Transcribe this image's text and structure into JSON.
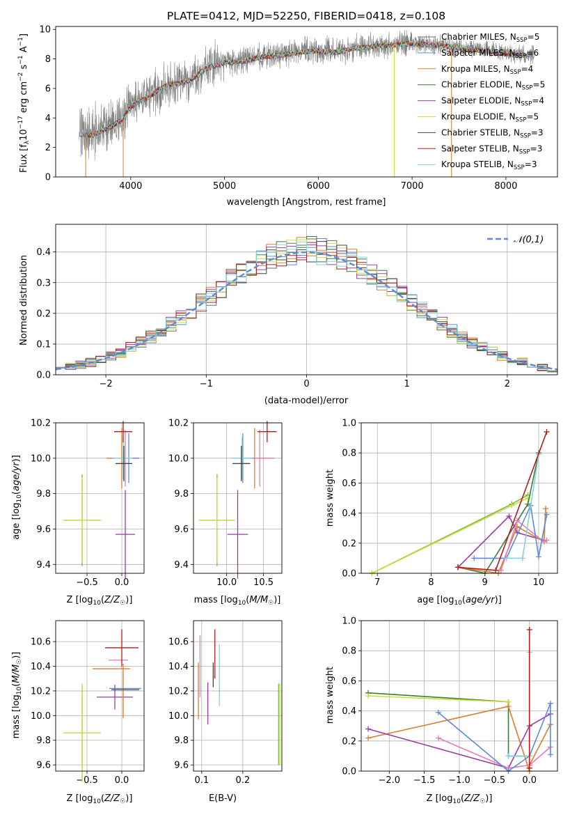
{
  "figure_title": "PLATE=0412, MJD=52250, FIBERID=0418, z=0.108",
  "colors": {
    "spectrum": "#808080",
    "models": [
      "#6a6a6a",
      "#5b8bd6",
      "#e07b28",
      "#3e7a3e",
      "#9a3aa8",
      "#c8de3c",
      "#404040",
      "#b81818",
      "#7fd4d8"
    ],
    "normal_curve": "#5b8bd6",
    "grid": "#b0b0b0",
    "param_markers": [
      "#e07b28",
      "#7bb93a",
      "#3e7a3e",
      "#9a3aa8",
      "#e878b8",
      "#b81818",
      "#404040",
      "#7fd4d8",
      "#5b8bd6",
      "#c8de3c"
    ]
  },
  "chart_data": [
    {
      "id": "spectrum",
      "type": "line",
      "xlabel": "wavelength [Angstrom, rest frame]",
      "ylabel": "Flux [f_λ 10^-17 erg cm^-2 s^-1 A^-1]",
      "xlim": [
        3200,
        8550
      ],
      "ylim": [
        0,
        10.2
      ],
      "xticks": [
        4000,
        5000,
        6000,
        7000,
        8000
      ],
      "yticks": [
        0,
        2,
        4,
        6,
        8,
        10
      ],
      "grid": false,
      "legend_placement": "right",
      "legend": [
        "Chabrier MILES, N_SSP=5",
        "Salpeter MILES, N_SSP=6",
        "Kroupa MILES, N_SSP=4",
        "Chabrier ELODIE, N_SSP=5",
        "Salpeter ELODIE, N_SSP=4",
        "Kroupa ELODIE, N_SSP=5",
        "Chabrier STELIB, N_SSP=3",
        "Salpeter STELIB, N_SSP=3",
        "Kroupa STELIB, N_SSP=3"
      ],
      "continuum": {
        "x": [
          3450,
          3600,
          3700,
          3800,
          3900,
          4000,
          4100,
          4200,
          4300,
          4400,
          4500,
          4600,
          4700,
          4800,
          4900,
          5000,
          5200,
          5400,
          5600,
          5800,
          6000,
          6200,
          6400,
          6600,
          6800,
          7000,
          7200,
          7400,
          7600,
          7800,
          8000,
          8200,
          8300
        ],
        "y": [
          2.9,
          2.9,
          3.2,
          3.5,
          3.9,
          4.8,
          5.2,
          5.5,
          6.0,
          6.3,
          6.4,
          6.5,
          6.9,
          7.4,
          7.6,
          7.8,
          7.9,
          8.2,
          8.3,
          8.5,
          8.6,
          8.5,
          8.8,
          8.9,
          9.0,
          9.1,
          9.0,
          8.9,
          8.7,
          8.6,
          8.4,
          8.3,
          8.2
        ]
      }
    },
    {
      "id": "residual_histogram",
      "type": "line",
      "xlabel": "(data-model)/error",
      "ylabel": "Normed distribution",
      "xlim": [
        -2.5,
        2.5
      ],
      "ylim": [
        0,
        0.49
      ],
      "xticks": [
        -2,
        -1,
        0,
        1,
        2
      ],
      "yticks": [
        0.0,
        0.1,
        0.2,
        0.3,
        0.4
      ],
      "grid": true,
      "legend_placement": "top-right",
      "legend": [
        "𝒩(0,1)"
      ],
      "bins": 50
    },
    {
      "id": "age_vs_Z",
      "type": "scatter",
      "xlabel": "Z [log10(Z/Z☉)]",
      "ylabel": "age  [log10(age/yr)]",
      "xlim": [
        -0.95,
        0.32
      ],
      "ylim": [
        9.35,
        10.2
      ],
      "xticks": [
        -0.5,
        0.0
      ],
      "yticks": [
        9.4,
        9.6,
        9.8,
        10.0,
        10.2
      ],
      "grid": true,
      "points": [
        {
          "x": -0.57,
          "y": 9.65,
          "xerr": 0.27,
          "yerr": 0.26,
          "c": 1
        },
        {
          "x": -0.57,
          "y": 9.65,
          "xerr": 0.27,
          "yerr": 0.24,
          "c": 9
        },
        {
          "x": 0.05,
          "y": 9.57,
          "xerr": 0.14,
          "yerr": 0.25,
          "c": 3
        },
        {
          "x": 0.0,
          "y": 10.0,
          "xerr": 0.22,
          "yerr": 0.17,
          "c": 0
        },
        {
          "x": 0.05,
          "y": 10.0,
          "xerr": 0.2,
          "yerr": 0.16,
          "c": 4
        },
        {
          "x": 0.1,
          "y": 10.0,
          "xerr": 0.15,
          "yerr": 0.14,
          "c": 8
        },
        {
          "x": 0.02,
          "y": 10.0,
          "xerr": 0.14,
          "yerr": 0.12,
          "c": 7
        },
        {
          "x": 0.03,
          "y": 9.97,
          "xerr": 0.12,
          "yerr": 0.1,
          "c": 6
        },
        {
          "x": 0.02,
          "y": 10.15,
          "xerr": 0.13,
          "yerr": 0.06,
          "c": 5
        }
      ]
    },
    {
      "id": "age_vs_mass",
      "type": "scatter",
      "xlabel": "mass [log10(M/M☉)]",
      "ylabel": "",
      "xlim": [
        9.55,
        10.75
      ],
      "ylim": [
        9.35,
        10.2
      ],
      "xticks": [
        10.0,
        10.5
      ],
      "yticks": [
        9.4,
        9.6,
        9.8,
        10.0,
        10.2
      ],
      "grid": true,
      "points": [
        {
          "x": 9.87,
          "y": 9.65,
          "xerr": 0.22,
          "yerr": 0.26,
          "c": 1
        },
        {
          "x": 9.87,
          "y": 9.65,
          "xerr": 0.25,
          "yerr": 0.24,
          "c": 9
        },
        {
          "x": 10.15,
          "y": 9.57,
          "xerr": 0.14,
          "yerr": 0.25,
          "c": 3
        },
        {
          "x": 10.38,
          "y": 10.0,
          "xerr": 0.22,
          "yerr": 0.17,
          "c": 0
        },
        {
          "x": 10.45,
          "y": 10.0,
          "xerr": 0.2,
          "yerr": 0.16,
          "c": 4
        },
        {
          "x": 10.22,
          "y": 10.0,
          "xerr": 0.15,
          "yerr": 0.14,
          "c": 8
        },
        {
          "x": 10.21,
          "y": 10.0,
          "xerr": 0.14,
          "yerr": 0.12,
          "c": 7
        },
        {
          "x": 10.2,
          "y": 9.97,
          "xerr": 0.12,
          "yerr": 0.1,
          "c": 6
        },
        {
          "x": 10.55,
          "y": 10.15,
          "xerr": 0.13,
          "yerr": 0.06,
          "c": 5
        }
      ]
    },
    {
      "id": "age_mass_weight",
      "type": "line",
      "xlabel": "age  [log10(age/yr)]",
      "ylabel": "mass weight",
      "xlim": [
        6.7,
        10.35
      ],
      "ylim": [
        0,
        1.0
      ],
      "xticks": [
        7,
        8,
        9,
        10
      ],
      "yticks": [
        0.0,
        0.2,
        0.4,
        0.6,
        0.8,
        1.0
      ],
      "grid": true,
      "series": [
        {
          "c": 1,
          "x": [
            6.9,
            9.5,
            9.8
          ],
          "y": [
            0.0,
            0.46,
            0.52
          ]
        },
        {
          "c": 9,
          "x": [
            6.9,
            9.5,
            9.8
          ],
          "y": [
            0.0,
            0.45,
            0.5
          ]
        },
        {
          "c": 2,
          "x": [
            8.5,
            9.0,
            9.8,
            10.0
          ],
          "y": [
            0.04,
            0.0,
            0.46,
            0.8
          ]
        },
        {
          "c": 3,
          "x": [
            8.5,
            9.45,
            9.6,
            10.1
          ],
          "y": [
            0.04,
            0.38,
            0.27,
            0.22
          ]
        },
        {
          "c": 0,
          "x": [
            8.5,
            9.25,
            9.6,
            10.1,
            10.13
          ],
          "y": [
            0.04,
            0.0,
            0.31,
            0.21,
            0.43
          ]
        },
        {
          "c": 4,
          "x": [
            9.3,
            9.6,
            10.1,
            10.15
          ],
          "y": [
            0.02,
            0.35,
            0.21,
            0.22
          ]
        },
        {
          "c": 8,
          "x": [
            8.8,
            9.4,
            9.85,
            10.0,
            10.15
          ],
          "y": [
            0.1,
            0.1,
            0.45,
            0.11,
            0.39
          ]
        },
        {
          "c": 7,
          "x": [
            9.4,
            9.7,
            10.0
          ],
          "y": [
            0.1,
            0.1,
            0.79
          ]
        },
        {
          "c": 5,
          "x": [
            8.5,
            9.2,
            10.15
          ],
          "y": [
            0.04,
            0.02,
            0.94
          ]
        }
      ]
    },
    {
      "id": "mass_vs_Z",
      "type": "scatter",
      "xlabel": "Z [log10(Z/Z☉)]",
      "ylabel": "mass [log10(M/M☉)]",
      "xlim": [
        -0.95,
        0.32
      ],
      "ylim": [
        9.55,
        10.77
      ],
      "xticks": [
        -0.5,
        0.0
      ],
      "yticks": [
        9.6,
        9.8,
        10.0,
        10.2,
        10.4,
        10.6
      ],
      "grid": true,
      "points": [
        {
          "x": -0.57,
          "y": 9.86,
          "xerr": 0.27,
          "yerr": 0.38,
          "c": 1
        },
        {
          "x": -0.57,
          "y": 9.86,
          "xerr": 0.27,
          "yerr": 0.4,
          "c": 9
        },
        {
          "x": -0.1,
          "y": 10.15,
          "xerr": 0.26,
          "yerr": 0.1,
          "c": 3
        },
        {
          "x": -0.15,
          "y": 10.38,
          "xerr": 0.27,
          "yerr": 0.0,
          "c": 0
        },
        {
          "x": -0.05,
          "y": 10.45,
          "xerr": 0.14,
          "yerr": 0.0,
          "c": 4
        },
        {
          "x": 0.02,
          "y": 10.2,
          "xerr": 0.0,
          "yerr": 0.22,
          "c": 0
        },
        {
          "x": 0.05,
          "y": 10.22,
          "xerr": 0.23,
          "yerr": 0.0,
          "c": 8
        },
        {
          "x": 0.05,
          "y": 10.21,
          "xerr": 0.2,
          "yerr": 0.0,
          "c": 6
        },
        {
          "x": 0.0,
          "y": 10.55,
          "xerr": 0.24,
          "yerr": 0.15,
          "c": 5
        }
      ]
    },
    {
      "id": "mass_vs_EBV",
      "type": "scatter",
      "xlabel": "E(B-V)",
      "ylabel": "",
      "xlim": [
        0.08,
        0.295
      ],
      "ylim": [
        9.55,
        10.77
      ],
      "xticks": [
        0.1,
        0.2
      ],
      "yticks": [
        9.6,
        9.8,
        10.0,
        10.2,
        10.4,
        10.6
      ],
      "grid": true,
      "points": [
        {
          "x": 0.092,
          "y": 10.2,
          "yerr": 0.23,
          "c": 0
        },
        {
          "x": 0.096,
          "y": 10.4,
          "yerr": 0.25,
          "c": 4
        },
        {
          "x": 0.115,
          "y": 10.1,
          "yerr": 0.17,
          "c": 3
        },
        {
          "x": 0.132,
          "y": 10.5,
          "yerr": 0.2,
          "c": 5
        },
        {
          "x": 0.128,
          "y": 10.33,
          "yerr": 0.1,
          "c": 6
        },
        {
          "x": 0.143,
          "y": 10.33,
          "yerr": 0.25,
          "c": 7
        },
        {
          "x": 0.287,
          "y": 9.93,
          "yerr": 0.33,
          "c": 1
        },
        {
          "x": 0.29,
          "y": 9.93,
          "yerr": 0.33,
          "c": 9
        }
      ]
    },
    {
      "id": "Z_mass_weight",
      "type": "line",
      "xlabel": "Z [log10(Z/Z☉)]",
      "ylabel": "mass weight",
      "xlim": [
        -2.4,
        0.4
      ],
      "ylim": [
        0,
        1.0
      ],
      "xticks": [
        -2.0,
        -1.5,
        -1.0,
        -0.5,
        0.0
      ],
      "yticks": [
        0.0,
        0.2,
        0.4,
        0.6,
        0.8,
        1.0
      ],
      "grid": true,
      "series": [
        {
          "c": 2,
          "x": [
            -2.3,
            -0.3,
            -0.3,
            0.0
          ],
          "y": [
            0.52,
            0.46,
            0.1,
            0.1
          ]
        },
        {
          "c": 9,
          "x": [
            -2.3,
            -0.3
          ],
          "y": [
            0.5,
            0.46
          ]
        },
        {
          "c": 0,
          "x": [
            -2.3,
            -0.3,
            0.0,
            0.0,
            0.3
          ],
          "y": [
            0.22,
            0.43,
            0.0,
            0.04,
            0.31
          ]
        },
        {
          "c": 3,
          "x": [
            -2.3,
            -0.3,
            0.0,
            0.3
          ],
          "y": [
            0.28,
            0.02,
            0.3,
            0.38
          ]
        },
        {
          "c": 4,
          "x": [
            -1.3,
            -0.3,
            0.0,
            0.3
          ],
          "y": [
            0.22,
            0.02,
            0.04,
            0.16
          ]
        },
        {
          "c": 8,
          "x": [
            -1.3,
            -0.3,
            0.0,
            0.3,
            0.3
          ],
          "y": [
            0.39,
            0.0,
            0.1,
            0.45,
            0.11
          ]
        },
        {
          "c": 7,
          "x": [
            -0.3,
            0.0,
            0.0
          ],
          "y": [
            0.1,
            0.1,
            0.79
          ]
        },
        {
          "c": 5,
          "x": [
            0.0,
            0.0
          ],
          "y": [
            0.02,
            0.94
          ]
        }
      ]
    }
  ]
}
